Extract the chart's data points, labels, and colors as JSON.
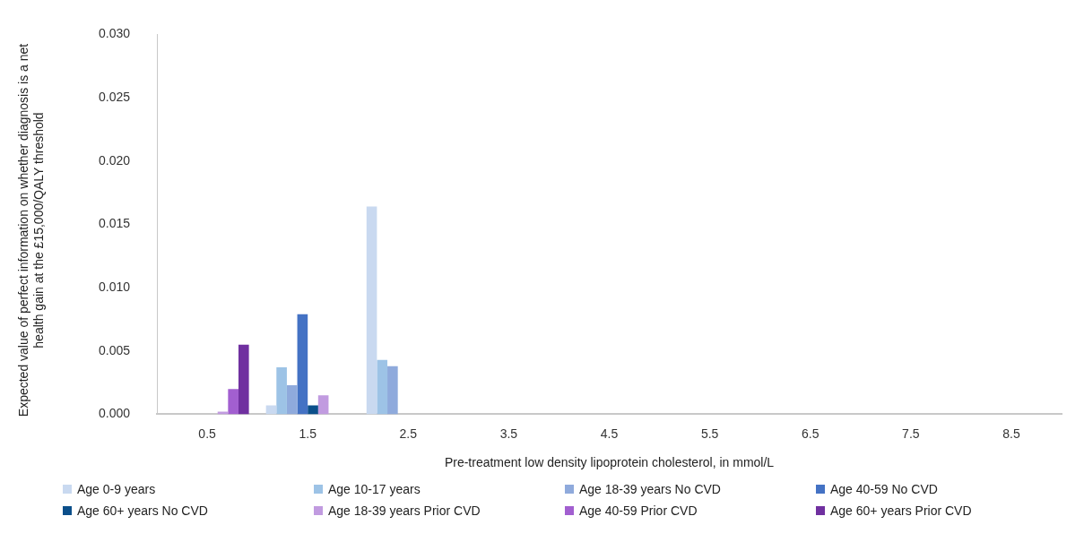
{
  "chart_data": {
    "type": "bar",
    "xlabel": "Pre-treatment low density lipoprotein cholesterol, in mmol/L",
    "ylabel": "Expected value of perfect information on whether diagnosis is a net health gain at the £15,000/QALY threshold",
    "categories": [
      "0.5",
      "1.5",
      "2.5",
      "3.5",
      "4.5",
      "5.5",
      "6.5",
      "7.5",
      "8.5"
    ],
    "ylim": [
      0,
      0.03
    ],
    "yticks": [
      {
        "value": 0,
        "label": "0.000"
      },
      {
        "value": 0.005,
        "label": "0.005"
      },
      {
        "value": 0.01,
        "label": "0.010"
      },
      {
        "value": 0.015,
        "label": "0.015"
      },
      {
        "value": 0.02,
        "label": "0.020"
      },
      {
        "value": 0.025,
        "label": "0.025"
      },
      {
        "value": 0.03,
        "label": "0.030"
      }
    ],
    "grid": false,
    "legend": "bottom",
    "series": [
      {
        "name": "Age 0-9 years",
        "color": "#c9d9f0",
        "values": [
          0,
          0.0007,
          0.0164,
          0,
          0,
          0,
          0,
          0,
          0
        ]
      },
      {
        "name": "Age 10-17 years",
        "color": "#9dc3e6",
        "values": [
          0,
          0.0037,
          0.0043,
          0,
          0,
          0,
          0,
          0,
          0
        ]
      },
      {
        "name": "Age 18-39 years No CVD",
        "color": "#8faadc",
        "values": [
          0,
          0.0023,
          0.0038,
          0,
          0,
          0,
          0,
          0,
          0
        ]
      },
      {
        "name": "Age 40-59 No CVD",
        "color": "#4472c4",
        "values": [
          0,
          0.0079,
          0,
          0,
          0,
          0,
          0,
          0,
          0
        ]
      },
      {
        "name": "Age 60+ years No CVD",
        "color": "#0b4f8a",
        "values": [
          0,
          0.0007,
          0,
          0,
          0,
          0,
          0,
          0,
          0
        ]
      },
      {
        "name": "Age 18-39 years Prior CVD",
        "color": "#c19be0",
        "values": [
          0.0002,
          0.0015,
          0,
          0,
          0,
          0,
          0,
          0,
          0
        ]
      },
      {
        "name": "Age 40-59 Prior CVD",
        "color": "#a25fd0",
        "values": [
          0.002,
          0,
          0,
          0,
          0,
          0,
          0,
          0,
          0
        ]
      },
      {
        "name": "Age 60+ years Prior CVD",
        "color": "#7030a0",
        "values": [
          0.0055,
          0,
          0,
          0,
          0,
          0,
          0,
          0,
          0
        ]
      }
    ]
  }
}
